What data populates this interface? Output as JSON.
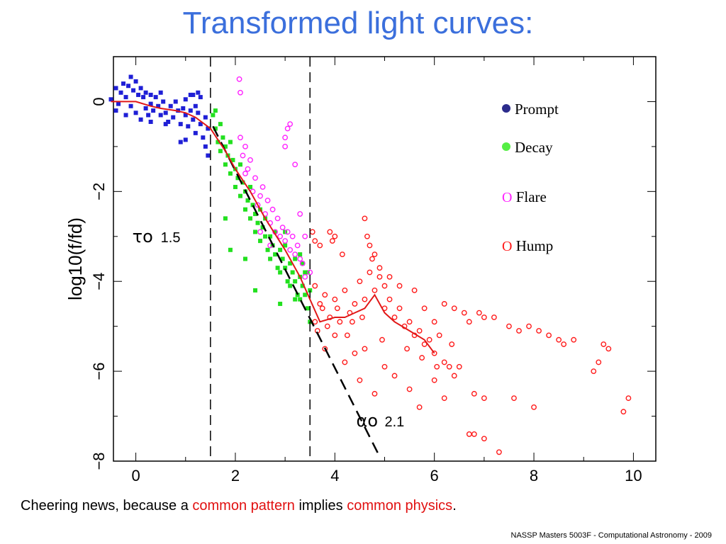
{
  "slide": {
    "title": "Transformed light curves:",
    "caption": {
      "part1": "Cheering news, because a ",
      "part2": "common pattern",
      "part3": " implies ",
      "part4": "common physics",
      "part5": "."
    },
    "footer": "NASSP Masters 5003F - Computational Astronomy - 2009"
  },
  "colors": {
    "title": "#3b6fdc",
    "prompt": "#1f1fd6",
    "decay": "#22e01f",
    "flare": "#ff22ff",
    "hump": "#ff1a1a",
    "fit_line": "#e01818",
    "legend_prompt_dot": "#2c2c8c",
    "legend_decay_dot": "#55ee44"
  },
  "legend": {
    "prompt": "Prompt",
    "decay": "Decay",
    "flare": "Flare",
    "hump": "Hump",
    "open_marker": "O"
  },
  "chart_data": {
    "type": "scatter",
    "xlabel": "",
    "ylabel": "log10(f/fd)",
    "xlim": [
      -0.45,
      10.45
    ],
    "ylim": [
      -8.0,
      1.0
    ],
    "x_ticks": [
      0,
      2,
      4,
      6,
      8,
      10
    ],
    "y_ticks": [
      0,
      -2,
      -4,
      -6,
      -8
    ],
    "x_tick_labels": [
      "0",
      "2",
      "4",
      "6",
      "8",
      "10"
    ],
    "y_tick_labels": [
      "0",
      "−2",
      "−4",
      "−6",
      "−8"
    ],
    "grid": false,
    "legend_position": "top-right",
    "vertical_lines": [
      1.5,
      3.5
    ],
    "power_law_line": {
      "x": [
        1.55,
        4.9
      ],
      "y": [
        -0.55,
        -7.9
      ]
    },
    "annotations": [
      {
        "symbol": "τo",
        "value": "1.5",
        "x": 0.5,
        "y": -3.0
      },
      {
        "symbol": "αo",
        "value": "2.1",
        "x": 5.0,
        "y": -7.1
      }
    ],
    "smooth_fit": {
      "name": "",
      "x": [
        -0.5,
        0.0,
        0.3,
        0.5,
        0.8,
        1.0,
        1.2,
        1.5,
        1.8,
        2.0,
        2.3,
        2.6,
        3.0,
        3.3,
        3.5,
        3.7,
        4.0,
        4.2,
        4.4,
        4.6,
        4.8,
        5.0,
        5.2,
        5.5,
        5.8,
        6.0
      ],
      "y": [
        0.0,
        0.0,
        -0.1,
        -0.15,
        -0.2,
        -0.25,
        -0.35,
        -0.6,
        -1.1,
        -1.5,
        -2.0,
        -2.6,
        -3.3,
        -3.9,
        -4.4,
        -4.9,
        -4.8,
        -4.8,
        -4.7,
        -4.6,
        -4.3,
        -4.7,
        -4.9,
        -5.1,
        -5.3,
        -5.6
      ]
    },
    "series": [
      {
        "name": "Prompt",
        "marker": "filled",
        "points": [
          [
            -0.5,
            0.05
          ],
          [
            -0.4,
            0.3
          ],
          [
            -0.35,
            -0.05
          ],
          [
            -0.3,
            0.2
          ],
          [
            -0.25,
            0.4
          ],
          [
            -0.2,
            0.1
          ],
          [
            -0.15,
            0.35
          ],
          [
            -0.1,
            0.55
          ],
          [
            -0.1,
            -0.1
          ],
          [
            -0.05,
            0.25
          ],
          [
            0.0,
            0.45
          ],
          [
            0.0,
            -0.25
          ],
          [
            0.05,
            0.15
          ],
          [
            0.1,
            0.3
          ],
          [
            0.1,
            -0.4
          ],
          [
            0.15,
            0.1
          ],
          [
            0.2,
            0.2
          ],
          [
            0.2,
            -0.15
          ],
          [
            0.25,
            -0.3
          ],
          [
            0.3,
            0.15
          ],
          [
            0.3,
            -0.05
          ],
          [
            0.35,
            -0.2
          ],
          [
            0.4,
            0.1
          ],
          [
            0.45,
            -0.1
          ],
          [
            0.5,
            -0.3
          ],
          [
            0.55,
            0.0
          ],
          [
            0.6,
            -0.25
          ],
          [
            0.65,
            -0.45
          ],
          [
            0.7,
            -0.1
          ],
          [
            0.75,
            -0.35
          ],
          [
            0.8,
            0.0
          ],
          [
            0.85,
            -0.2
          ],
          [
            0.9,
            -0.5
          ],
          [
            0.95,
            -0.15
          ],
          [
            1.0,
            -0.3
          ],
          [
            1.0,
            0.05
          ],
          [
            1.05,
            -0.55
          ],
          [
            1.1,
            -0.2
          ],
          [
            1.1,
            0.15
          ],
          [
            1.15,
            -0.4
          ],
          [
            1.2,
            -0.1
          ],
          [
            1.2,
            -0.7
          ],
          [
            1.25,
            -0.25
          ],
          [
            1.3,
            -0.5
          ],
          [
            1.3,
            0.1
          ],
          [
            1.35,
            -0.8
          ],
          [
            1.4,
            -0.35
          ],
          [
            1.4,
            -1.0
          ],
          [
            1.45,
            -0.6
          ],
          [
            1.45,
            -1.2
          ],
          [
            1.0,
            -0.85
          ],
          [
            0.9,
            -0.9
          ],
          [
            0.6,
            -0.5
          ],
          [
            0.3,
            -0.45
          ],
          [
            -0.2,
            -0.3
          ],
          [
            -0.4,
            -0.2
          ],
          [
            1.25,
            0.2
          ],
          [
            1.15,
            0.15
          ],
          [
            0.5,
            0.2
          ]
        ]
      },
      {
        "name": "Decay",
        "marker": "filled",
        "points": [
          [
            1.55,
            -0.3
          ],
          [
            1.6,
            -0.6
          ],
          [
            1.6,
            -0.2
          ],
          [
            1.65,
            -0.9
          ],
          [
            1.7,
            -0.5
          ],
          [
            1.7,
            -1.1
          ],
          [
            1.75,
            -0.8
          ],
          [
            1.8,
            -1.0
          ],
          [
            1.8,
            -1.4
          ],
          [
            1.85,
            -1.2
          ],
          [
            1.9,
            -0.9
          ],
          [
            1.9,
            -1.6
          ],
          [
            1.95,
            -1.3
          ],
          [
            2.0,
            -1.5
          ],
          [
            2.0,
            -1.9
          ],
          [
            2.05,
            -1.7
          ],
          [
            2.1,
            -1.4
          ],
          [
            2.1,
            -2.1
          ],
          [
            2.15,
            -1.8
          ],
          [
            2.2,
            -2.0
          ],
          [
            2.2,
            -2.4
          ],
          [
            2.25,
            -2.2
          ],
          [
            2.3,
            -1.9
          ],
          [
            2.3,
            -2.6
          ],
          [
            2.35,
            -2.3
          ],
          [
            2.4,
            -2.5
          ],
          [
            2.4,
            -2.9
          ],
          [
            2.45,
            -2.7
          ],
          [
            2.5,
            -2.4
          ],
          [
            2.5,
            -3.1
          ],
          [
            2.55,
            -2.8
          ],
          [
            2.6,
            -3.0
          ],
          [
            2.6,
            -2.6
          ],
          [
            2.65,
            -3.3
          ],
          [
            2.7,
            -3.0
          ],
          [
            2.7,
            -3.5
          ],
          [
            2.75,
            -3.2
          ],
          [
            2.8,
            -3.4
          ],
          [
            2.8,
            -2.9
          ],
          [
            2.85,
            -3.7
          ],
          [
            2.9,
            -3.3
          ],
          [
            2.9,
            -3.8
          ],
          [
            2.95,
            -3.5
          ],
          [
            3.0,
            -3.7
          ],
          [
            3.0,
            -3.2
          ],
          [
            3.05,
            -4.0
          ],
          [
            3.1,
            -3.6
          ],
          [
            3.1,
            -4.1
          ],
          [
            3.15,
            -3.8
          ],
          [
            3.2,
            -4.0
          ],
          [
            3.2,
            -3.5
          ],
          [
            3.25,
            -4.3
          ],
          [
            3.3,
            -3.9
          ],
          [
            3.3,
            -4.4
          ],
          [
            3.35,
            -4.1
          ],
          [
            3.4,
            -4.3
          ],
          [
            3.4,
            -3.8
          ],
          [
            3.45,
            -4.6
          ],
          [
            3.5,
            -4.2
          ],
          [
            3.5,
            -4.9
          ],
          [
            2.2,
            -3.5
          ],
          [
            2.4,
            -4.2
          ],
          [
            1.8,
            -2.6
          ],
          [
            2.9,
            -4.5
          ],
          [
            1.9,
            -3.3
          ],
          [
            3.2,
            -4.4
          ],
          [
            3.3,
            -3.4
          ],
          [
            3.0,
            -2.9
          ],
          [
            3.45,
            -3.8
          ],
          [
            3.35,
            -3.6
          ]
        ]
      },
      {
        "name": "Flare",
        "marker": "open",
        "points": [
          [
            2.08,
            0.5
          ],
          [
            2.1,
            0.2
          ],
          [
            2.1,
            -0.8
          ],
          [
            2.15,
            -1.2
          ],
          [
            2.2,
            -1.0
          ],
          [
            2.25,
            -1.5
          ],
          [
            2.3,
            -1.3
          ],
          [
            2.35,
            -2.0
          ],
          [
            2.4,
            -1.7
          ],
          [
            2.45,
            -2.3
          ],
          [
            2.5,
            -2.1
          ],
          [
            2.55,
            -1.9
          ],
          [
            2.6,
            -2.5
          ],
          [
            2.65,
            -2.2
          ],
          [
            2.7,
            -2.7
          ],
          [
            2.75,
            -2.4
          ],
          [
            2.8,
            -2.9
          ],
          [
            2.85,
            -2.6
          ],
          [
            2.9,
            -3.0
          ],
          [
            2.95,
            -2.8
          ],
          [
            3.0,
            -3.1
          ],
          [
            3.05,
            -2.9
          ],
          [
            3.1,
            -3.3
          ],
          [
            3.15,
            -3.0
          ],
          [
            3.2,
            -3.4
          ],
          [
            3.25,
            -3.2
          ],
          [
            3.3,
            -3.5
          ],
          [
            3.35,
            -3.6
          ],
          [
            3.4,
            -3.9
          ],
          [
            3.5,
            -3.8
          ],
          [
            3.0,
            -1.0
          ],
          [
            3.05,
            -0.6
          ],
          [
            3.1,
            -0.5
          ],
          [
            3.0,
            -0.8
          ],
          [
            3.2,
            -1.4
          ],
          [
            3.3,
            -2.5
          ],
          [
            3.4,
            -3.0
          ],
          [
            2.5,
            -2.9
          ],
          [
            2.7,
            -3.2
          ],
          [
            2.2,
            -1.6
          ]
        ]
      },
      {
        "name": "Hump",
        "marker": "open",
        "points": [
          [
            3.55,
            -2.9
          ],
          [
            3.6,
            -3.1
          ],
          [
            3.7,
            -3.2
          ],
          [
            3.9,
            -2.9
          ],
          [
            3.95,
            -3.1
          ],
          [
            4.0,
            -3.0
          ],
          [
            4.15,
            -3.4
          ],
          [
            3.6,
            -4.1
          ],
          [
            3.7,
            -4.5
          ],
          [
            3.8,
            -4.3
          ],
          [
            3.9,
            -4.8
          ],
          [
            4.0,
            -4.4
          ],
          [
            4.1,
            -4.9
          ],
          [
            4.2,
            -4.2
          ],
          [
            4.3,
            -4.7
          ],
          [
            4.4,
            -4.5
          ],
          [
            4.5,
            -4.0
          ],
          [
            4.6,
            -4.4
          ],
          [
            4.7,
            -3.8
          ],
          [
            4.8,
            -4.2
          ],
          [
            4.9,
            -3.9
          ],
          [
            5.0,
            -4.1
          ],
          [
            5.1,
            -4.4
          ],
          [
            5.2,
            -4.8
          ],
          [
            5.3,
            -4.6
          ],
          [
            5.4,
            -5.0
          ],
          [
            5.5,
            -4.9
          ],
          [
            5.6,
            -5.2
          ],
          [
            5.7,
            -5.1
          ],
          [
            5.8,
            -5.4
          ],
          [
            5.9,
            -5.3
          ],
          [
            6.0,
            -5.6
          ],
          [
            6.1,
            -5.2
          ],
          [
            6.2,
            -5.8
          ],
          [
            6.3,
            -5.9
          ],
          [
            6.4,
            -6.1
          ],
          [
            4.6,
            -2.6
          ],
          [
            4.65,
            -3.0
          ],
          [
            4.7,
            -3.2
          ],
          [
            4.75,
            -3.5
          ],
          [
            4.8,
            -3.4
          ],
          [
            4.9,
            -3.7
          ],
          [
            5.0,
            -4.6
          ],
          [
            5.1,
            -3.9
          ],
          [
            5.3,
            -4.1
          ],
          [
            5.6,
            -4.2
          ],
          [
            5.8,
            -4.6
          ],
          [
            6.0,
            -4.9
          ],
          [
            6.2,
            -4.5
          ],
          [
            6.4,
            -4.6
          ],
          [
            6.6,
            -4.7
          ],
          [
            6.7,
            -4.9
          ],
          [
            6.9,
            -4.7
          ],
          [
            7.0,
            -4.8
          ],
          [
            7.2,
            -4.8
          ],
          [
            7.5,
            -5.0
          ],
          [
            7.7,
            -5.1
          ],
          [
            7.9,
            -5.0
          ],
          [
            8.1,
            -5.1
          ],
          [
            8.3,
            -5.2
          ],
          [
            8.5,
            -5.3
          ],
          [
            8.6,
            -5.4
          ],
          [
            8.8,
            -5.3
          ],
          [
            9.4,
            -5.4
          ],
          [
            9.5,
            -5.5
          ],
          [
            9.3,
            -5.8
          ],
          [
            9.2,
            -6.0
          ],
          [
            9.8,
            -6.9
          ],
          [
            9.9,
            -6.6
          ],
          [
            3.8,
            -5.5
          ],
          [
            4.0,
            -5.2
          ],
          [
            4.2,
            -5.8
          ],
          [
            4.4,
            -5.6
          ],
          [
            4.5,
            -6.2
          ],
          [
            4.6,
            -5.5
          ],
          [
            4.8,
            -6.5
          ],
          [
            5.0,
            -5.9
          ],
          [
            5.2,
            -6.1
          ],
          [
            5.5,
            -6.4
          ],
          [
            5.7,
            -6.8
          ],
          [
            6.0,
            -6.2
          ],
          [
            6.2,
            -6.6
          ],
          [
            6.5,
            -5.9
          ],
          [
            6.8,
            -6.5
          ],
          [
            7.0,
            -6.6
          ],
          [
            7.6,
            -6.6
          ],
          [
            8.0,
            -6.8
          ],
          [
            6.8,
            -7.4
          ],
          [
            6.7,
            -7.4
          ],
          [
            7.0,
            -7.5
          ],
          [
            7.3,
            -7.8
          ],
          [
            3.6,
            -4.9
          ],
          [
            3.65,
            -5.1
          ],
          [
            3.75,
            -4.6
          ],
          [
            3.85,
            -5.0
          ],
          [
            4.05,
            -4.6
          ],
          [
            4.25,
            -5.2
          ],
          [
            4.35,
            -4.9
          ],
          [
            5.45,
            -5.5
          ],
          [
            5.75,
            -5.7
          ],
          [
            6.05,
            -5.9
          ],
          [
            6.35,
            -5.4
          ],
          [
            4.55,
            -4.8
          ],
          [
            4.95,
            -5.3
          ]
        ]
      }
    ]
  }
}
